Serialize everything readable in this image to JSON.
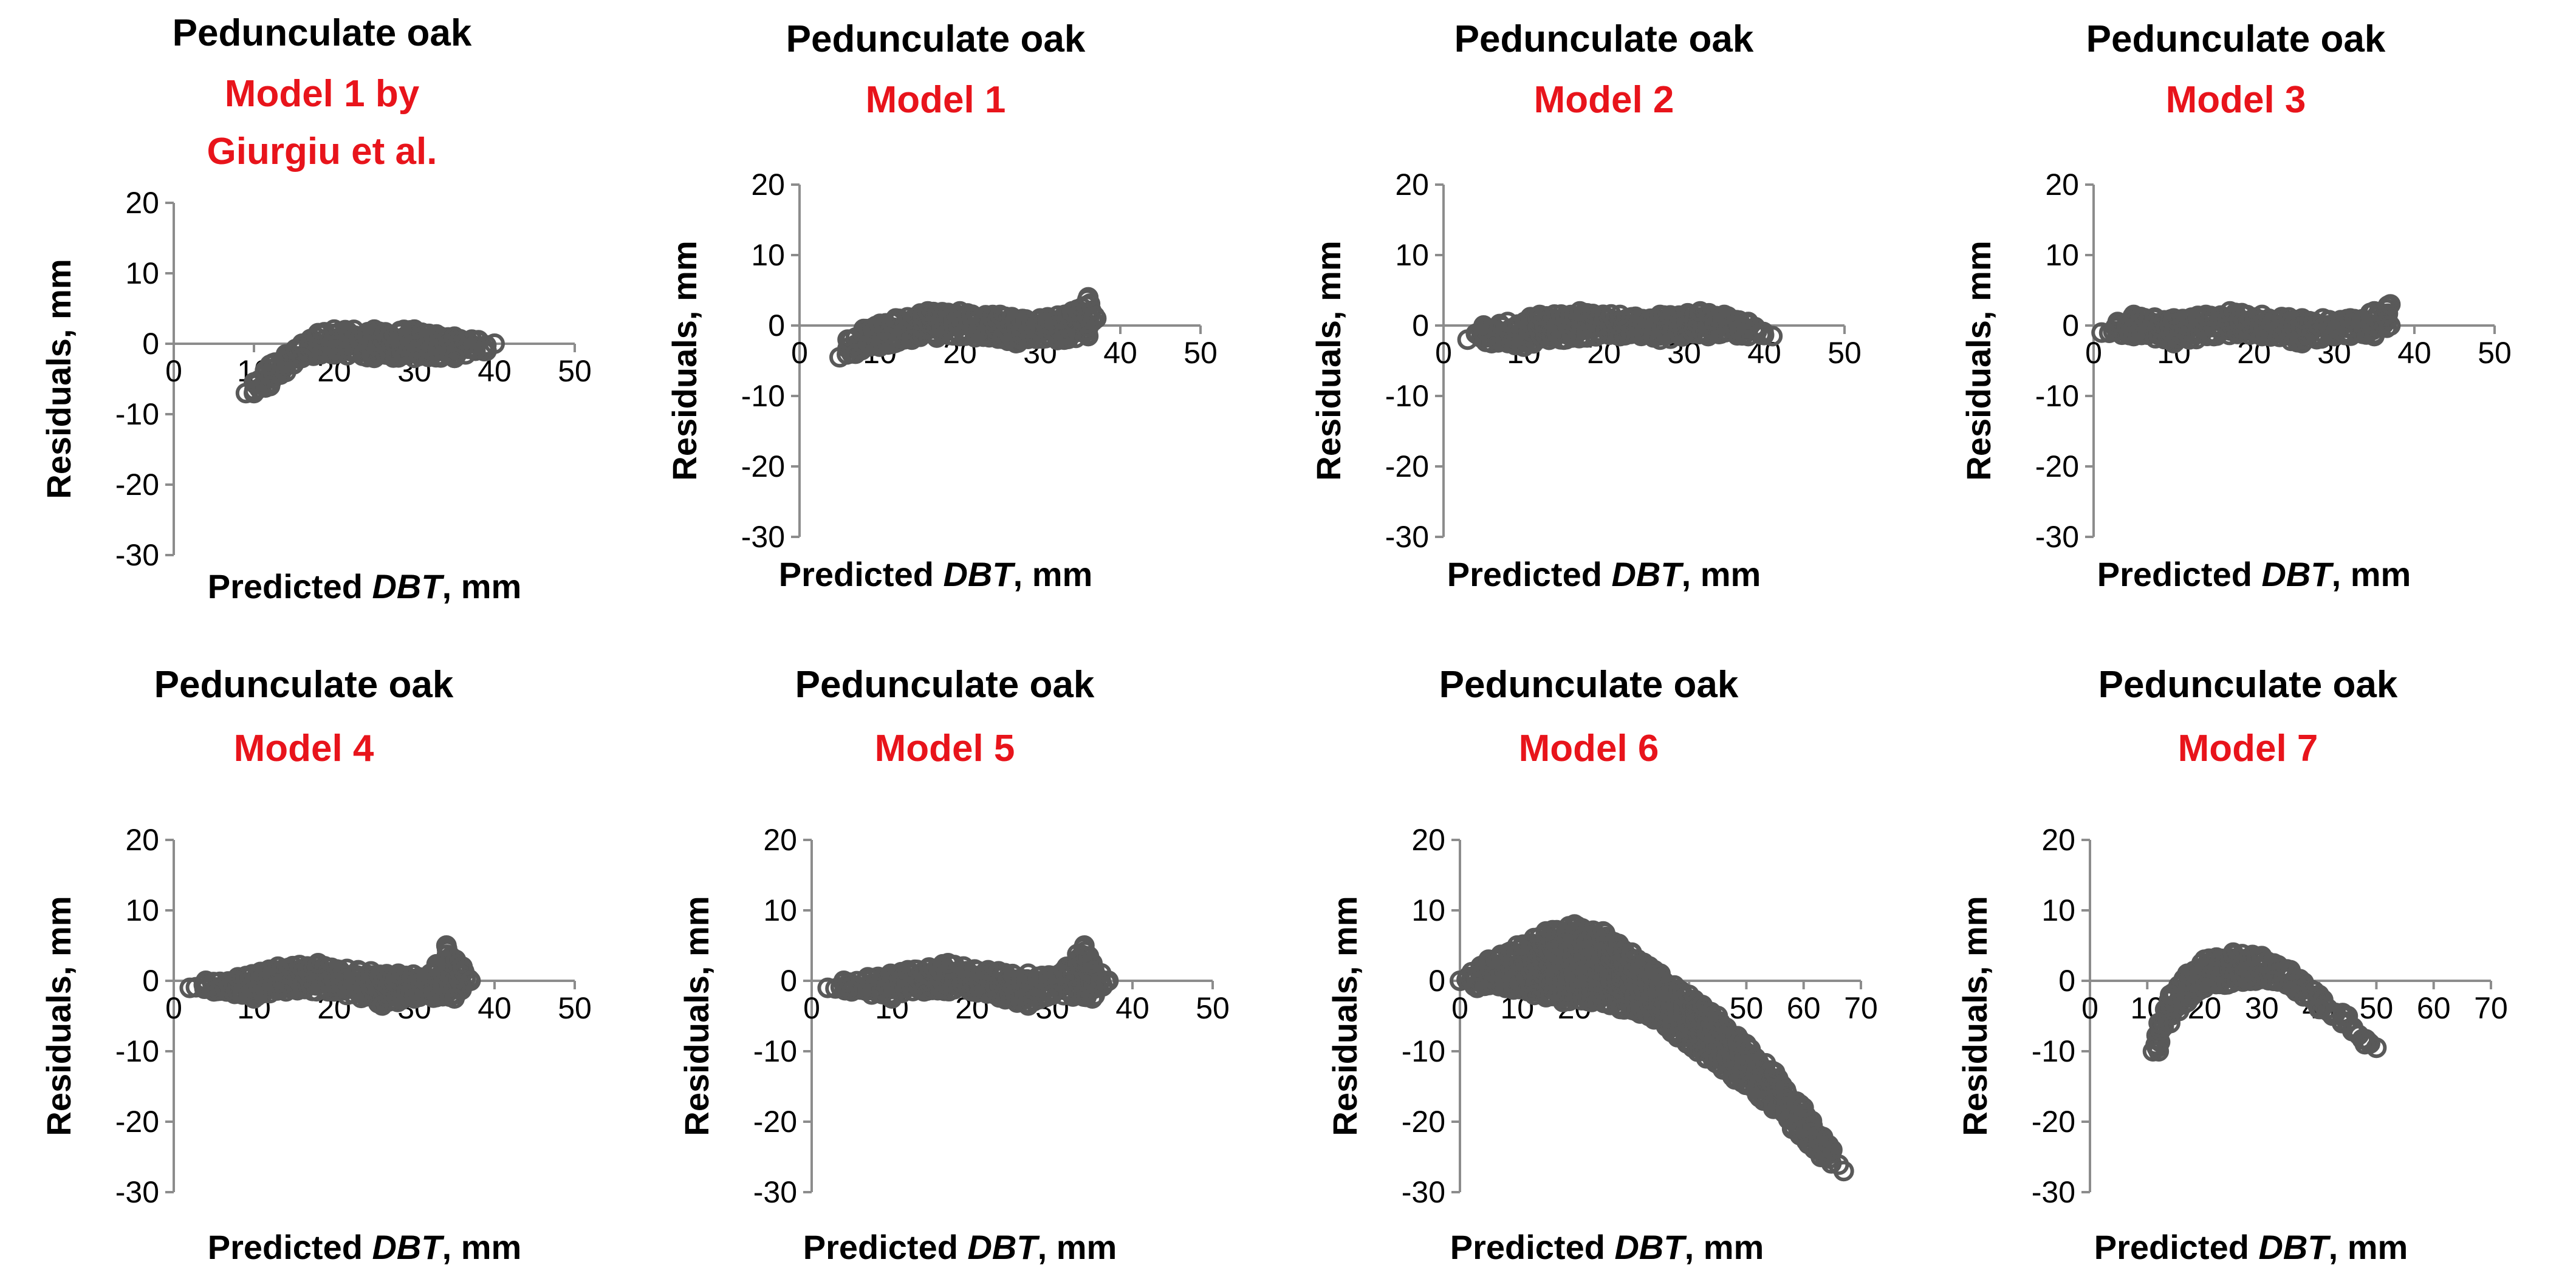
{
  "figure": {
    "layout": "2 rows x 4 columns",
    "colors": {
      "title": "#000000",
      "subtitle": "#e8141b",
      "points": "#595959",
      "axis": "#8c8c8c"
    }
  },
  "chart_data": [
    {
      "type": "scatter",
      "title": "Pedunculate oak",
      "subtitle": [
        "Model 1 by",
        "Giurgiu et al."
      ],
      "xlabel": {
        "prefix": "Predicted ",
        "italic": "DBT",
        "suffix": ", mm"
      },
      "ylabel": "Residuals, mm",
      "xlim": [
        0,
        50
      ],
      "xticks": [
        0,
        10,
        20,
        30,
        40,
        50
      ],
      "ylim": [
        -30,
        20
      ],
      "yticks": [
        20,
        10,
        0,
        -10,
        -20,
        -30
      ],
      "grid": false,
      "envelope": [
        [
          9,
          -7
        ],
        [
          10,
          -5.5
        ],
        [
          12,
          -3
        ],
        [
          14,
          -1.5
        ],
        [
          16,
          0
        ],
        [
          18,
          1.5
        ],
        [
          20,
          2
        ],
        [
          25,
          2
        ],
        [
          30,
          2
        ],
        [
          35,
          1
        ],
        [
          38,
          0.5
        ],
        [
          40,
          0
        ],
        [
          39,
          -1
        ],
        [
          35,
          -2
        ],
        [
          30,
          -2
        ],
        [
          25,
          -2
        ],
        [
          20,
          -1.5
        ],
        [
          16,
          -2
        ],
        [
          14,
          -4
        ],
        [
          12,
          -6
        ],
        [
          10,
          -7
        ]
      ]
    },
    {
      "type": "scatter",
      "title": "Pedunculate oak",
      "subtitle": [
        "Model 1"
      ],
      "xlabel": {
        "prefix": "Predicted ",
        "italic": "DBT",
        "suffix": ", mm"
      },
      "ylabel": "Residuals, mm",
      "xlim": [
        0,
        50
      ],
      "xticks": [
        0,
        10,
        20,
        30,
        40,
        50
      ],
      "ylim": [
        -30,
        20
      ],
      "yticks": [
        20,
        10,
        0,
        -10,
        -20,
        -30
      ],
      "grid": false,
      "envelope": [
        [
          5,
          -4.5
        ],
        [
          6,
          -2
        ],
        [
          8,
          -0.5
        ],
        [
          12,
          1
        ],
        [
          16,
          2
        ],
        [
          20,
          2
        ],
        [
          25,
          1.5
        ],
        [
          30,
          1
        ],
        [
          34,
          2
        ],
        [
          36,
          4
        ],
        [
          37,
          1
        ],
        [
          36,
          -1.5
        ],
        [
          33,
          -2
        ],
        [
          27,
          -2.5
        ],
        [
          20,
          -1.5
        ],
        [
          14,
          -2
        ],
        [
          10,
          -3
        ],
        [
          7,
          -4
        ]
      ]
    },
    {
      "type": "scatter",
      "title": "Pedunculate oak",
      "subtitle": [
        "Model 2"
      ],
      "xlabel": {
        "prefix": "Predicted ",
        "italic": "DBT",
        "suffix": ", mm"
      },
      "ylabel": "Residuals, mm",
      "xlim": [
        0,
        50
      ],
      "xticks": [
        0,
        10,
        20,
        30,
        40,
        50
      ],
      "ylim": [
        -30,
        20
      ],
      "yticks": [
        20,
        10,
        0,
        -10,
        -20,
        -30
      ],
      "grid": false,
      "envelope": [
        [
          3,
          -2
        ],
        [
          5,
          0
        ],
        [
          8,
          0.5
        ],
        [
          12,
          1.5
        ],
        [
          17,
          2
        ],
        [
          22,
          1.5
        ],
        [
          27,
          1.5
        ],
        [
          32,
          2
        ],
        [
          35,
          1.5
        ],
        [
          38,
          0.5
        ],
        [
          41,
          -1.5
        ],
        [
          38,
          -1.5
        ],
        [
          33,
          -1.5
        ],
        [
          27,
          -2
        ],
        [
          22,
          -1.5
        ],
        [
          15,
          -2
        ],
        [
          10,
          -3
        ],
        [
          6,
          -2.5
        ]
      ]
    },
    {
      "type": "scatter",
      "title": "Pedunculate oak",
      "subtitle": [
        "Model 3"
      ],
      "xlabel": {
        "prefix": "Predicted ",
        "italic": "DBT",
        "suffix": ", mm"
      },
      "ylabel": "Residuals, mm",
      "xlim": [
        0,
        50
      ],
      "xticks": [
        0,
        10,
        20,
        30,
        40,
        50
      ],
      "ylim": [
        -30,
        20
      ],
      "yticks": [
        20,
        10,
        0,
        -10,
        -20,
        -30
      ],
      "grid": false,
      "envelope": [
        [
          1,
          -1
        ],
        [
          3,
          0.5
        ],
        [
          5,
          1.5
        ],
        [
          10,
          1
        ],
        [
          14,
          1.5
        ],
        [
          17,
          2
        ],
        [
          21,
          1.5
        ],
        [
          26,
          1
        ],
        [
          32,
          1
        ],
        [
          35,
          2
        ],
        [
          37,
          3
        ],
        [
          37,
          0
        ],
        [
          35,
          -1.5
        ],
        [
          30,
          -1.5
        ],
        [
          26,
          -2.5
        ],
        [
          21,
          -1.5
        ],
        [
          15,
          -1.5
        ],
        [
          10,
          -2.5
        ],
        [
          5,
          -1.5
        ]
      ]
    },
    {
      "type": "scatter",
      "title": "Pedunculate oak",
      "subtitle": [
        "Model 4"
      ],
      "xlabel": {
        "prefix": "Predicted ",
        "italic": "DBT",
        "suffix": ", mm"
      },
      "ylabel": "Residuals, mm",
      "xlim": [
        0,
        50
      ],
      "xticks": [
        0,
        10,
        20,
        30,
        40,
        50
      ],
      "ylim": [
        -30,
        20
      ],
      "yticks": [
        20,
        10,
        0,
        -10,
        -20,
        -30
      ],
      "grid": false,
      "envelope": [
        [
          2,
          -1
        ],
        [
          4,
          0
        ],
        [
          8,
          0.5
        ],
        [
          13,
          2
        ],
        [
          18,
          2.5
        ],
        [
          23,
          1.5
        ],
        [
          28,
          1
        ],
        [
          32,
          1
        ],
        [
          34,
          5
        ],
        [
          36,
          2
        ],
        [
          37,
          0
        ],
        [
          35,
          -2.5
        ],
        [
          30,
          -2.5
        ],
        [
          26,
          -3.5
        ],
        [
          20,
          -1.5
        ],
        [
          14,
          -1.5
        ],
        [
          10,
          -2.5
        ],
        [
          5,
          -1.5
        ]
      ]
    },
    {
      "type": "scatter",
      "title": "Pedunculate oak",
      "subtitle": [
        "Model 5"
      ],
      "xlabel": {
        "prefix": "Predicted ",
        "italic": "DBT",
        "suffix": ", mm"
      },
      "ylabel": "Residuals, mm",
      "xlim": [
        0,
        50
      ],
      "xticks": [
        0,
        10,
        20,
        30,
        40,
        50
      ],
      "ylim": [
        -30,
        20
      ],
      "yticks": [
        20,
        10,
        0,
        -10,
        -20,
        -30
      ],
      "grid": false,
      "envelope": [
        [
          2,
          -1
        ],
        [
          4,
          0
        ],
        [
          7,
          0.5
        ],
        [
          12,
          1.5
        ],
        [
          17,
          2.5
        ],
        [
          22,
          1.5
        ],
        [
          27,
          1
        ],
        [
          31,
          1
        ],
        [
          34,
          5
        ],
        [
          35,
          2.5
        ],
        [
          37,
          0
        ],
        [
          35,
          -2.5
        ],
        [
          30,
          -2
        ],
        [
          27,
          -3.5
        ],
        [
          20,
          -1.5
        ],
        [
          14,
          -1.5
        ],
        [
          10,
          -2.5
        ],
        [
          5,
          -1.5
        ]
      ]
    },
    {
      "type": "scatter",
      "title": "Pedunculate oak",
      "subtitle": [
        "Model 6"
      ],
      "xlabel": {
        "prefix": "Predicted ",
        "italic": "DBT",
        "suffix": ", mm"
      },
      "ylabel": "Residuals, mm",
      "xlim": [
        0,
        70
      ],
      "xticks": [
        0,
        10,
        20,
        30,
        40,
        50,
        60,
        70
      ],
      "ylim": [
        -30,
        20
      ],
      "yticks": [
        20,
        10,
        0,
        -10,
        -20,
        -30
      ],
      "grid": false,
      "envelope": [
        [
          0,
          0
        ],
        [
          5,
          3
        ],
        [
          10,
          5
        ],
        [
          15,
          7
        ],
        [
          20,
          8
        ],
        [
          25,
          7
        ],
        [
          30,
          4
        ],
        [
          35,
          1
        ],
        [
          40,
          -2
        ],
        [
          45,
          -5
        ],
        [
          50,
          -9
        ],
        [
          55,
          -13
        ],
        [
          60,
          -18
        ],
        [
          65,
          -24
        ],
        [
          67,
          -27
        ],
        [
          63,
          -25
        ],
        [
          58,
          -21
        ],
        [
          53,
          -17
        ],
        [
          48,
          -14
        ],
        [
          43,
          -11
        ],
        [
          38,
          -8
        ],
        [
          33,
          -5
        ],
        [
          28,
          -4
        ],
        [
          23,
          -3
        ],
        [
          18,
          -3
        ],
        [
          13,
          -2
        ],
        [
          8,
          -1
        ],
        [
          3,
          -1
        ]
      ]
    },
    {
      "type": "scatter",
      "title": "Pedunculate oak",
      "subtitle": [
        "Model 7"
      ],
      "xlabel": {
        "prefix": "Predicted ",
        "italic": "DBT",
        "suffix": ", mm"
      },
      "ylabel": "Residuals, mm",
      "xlim": [
        0,
        70
      ],
      "xticks": [
        0,
        10,
        20,
        30,
        40,
        50,
        60,
        70
      ],
      "ylim": [
        -30,
        20
      ],
      "yticks": [
        20,
        10,
        0,
        -10,
        -20,
        -30
      ],
      "grid": false,
      "envelope": [
        [
          11,
          -10
        ],
        [
          12,
          -6
        ],
        [
          14,
          -2
        ],
        [
          17,
          1
        ],
        [
          20,
          3
        ],
        [
          25,
          4
        ],
        [
          30,
          3.5
        ],
        [
          35,
          1.5
        ],
        [
          40,
          -2
        ],
        [
          45,
          -5
        ],
        [
          50,
          -9.5
        ],
        [
          48,
          -9
        ],
        [
          44,
          -6
        ],
        [
          40,
          -4
        ],
        [
          36,
          -1.5
        ],
        [
          32,
          0
        ],
        [
          28,
          0
        ],
        [
          24,
          -0.5
        ],
        [
          20,
          -1
        ],
        [
          17,
          -3
        ],
        [
          14,
          -6
        ],
        [
          12,
          -10
        ]
      ]
    }
  ]
}
